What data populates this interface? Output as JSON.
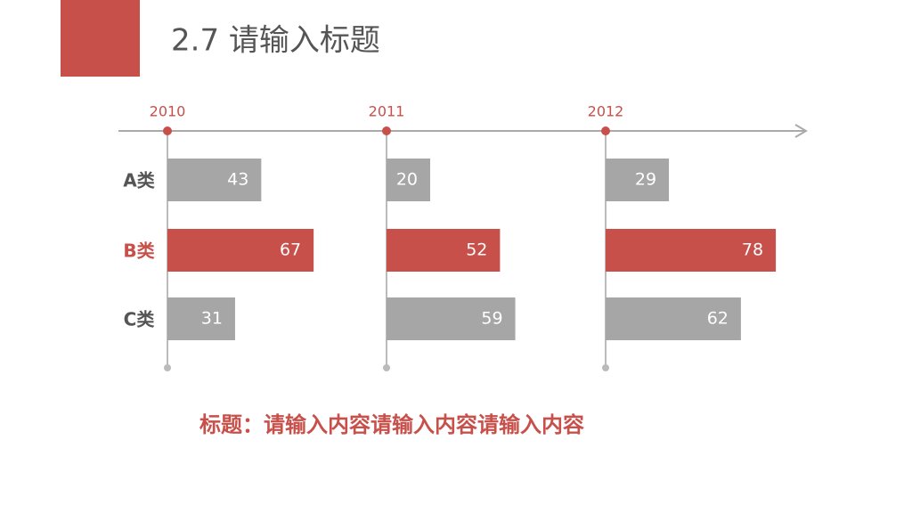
{
  "chart_data": {
    "type": "bar",
    "orientation": "horizontal",
    "title": "2.7 请输入标题",
    "annotations": [
      "标题：请输入内容请输入内容请输入内容"
    ],
    "categories": [
      "A类",
      "B类",
      "C类"
    ],
    "category_colors": [
      "#a6a6a6",
      "#c8504b",
      "#a6a6a6"
    ],
    "series": [
      {
        "name": "2010",
        "values": [
          43,
          67,
          31
        ]
      },
      {
        "name": "2011",
        "values": [
          20,
          52,
          59
        ]
      },
      {
        "name": "2012",
        "values": [
          29,
          78,
          62
        ]
      }
    ]
  }
}
